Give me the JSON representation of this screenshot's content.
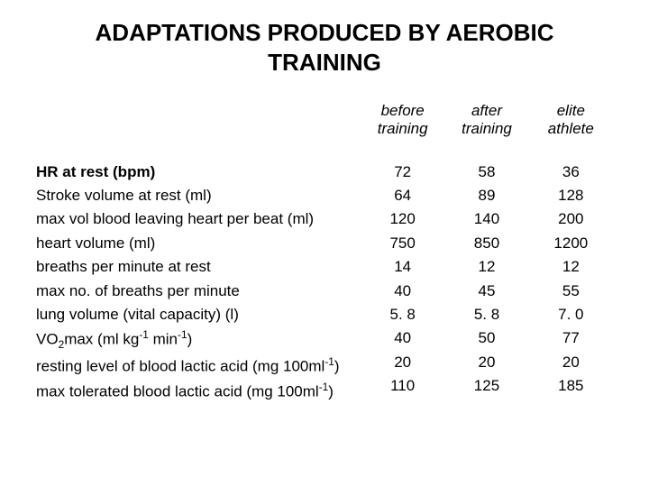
{
  "title": "ADAPTATIONS PRODUCED BY AEROBIC TRAINING",
  "columns": {
    "c1_line1": "before",
    "c1_line2": "training",
    "c2_line1": "after",
    "c2_line2": "training",
    "c3_line1": "elite",
    "c3_line2": "athlete"
  },
  "rows": [
    {
      "label": "HR at rest (bpm)",
      "bold": true,
      "c1": "72",
      "c2": "58",
      "c3": "36"
    },
    {
      "label": "Stroke volume at rest (ml)",
      "c1": "64",
      "c2": "89",
      "c3": "128"
    },
    {
      "label": "max vol blood leaving heart per beat (ml)",
      "c1": "120",
      "c2": "140",
      "c3": "200"
    },
    {
      "label": "heart volume (ml)",
      "c1": "750",
      "c2": "850",
      "c3": "1200"
    },
    {
      "label": "breaths per minute at rest",
      "c1": "14",
      "c2": "12",
      "c3": "12"
    },
    {
      "label": "max no. of breaths per minute",
      "c1": "40",
      "c2": "45",
      "c3": "55"
    },
    {
      "label": "lung volume (vital capacity) (l)",
      "c1": "5. 8",
      "c2": "5. 8",
      "c3": "7. 0"
    },
    {
      "label_html": "VO<sub>2</sub>max (ml kg<sup>-1</sup> min<sup>-1</sup>)",
      "label": "VO2max (ml kg-1 min-1)",
      "c1": "40",
      "c2": "50",
      "c3": "77"
    },
    {
      "label_html": "resting level of blood lactic acid (mg 100ml<sup>-1</sup>)",
      "label": "resting level of blood lactic acid (mg 100ml-1)",
      "c1": "20",
      "c2": "20",
      "c3": "20"
    },
    {
      "label_html": "max tolerated blood lactic acid (mg 100ml<sup>-1</sup>)",
      "label": "max tolerated blood lactic acid (mg 100ml-1)",
      "c1": "110",
      "c2": "125",
      "c3": "185"
    }
  ],
  "style": {
    "background_color": "#ffffff",
    "text_color": "#000000",
    "title_fontsize": 26,
    "body_fontsize": 17,
    "font_family": "Arial"
  }
}
